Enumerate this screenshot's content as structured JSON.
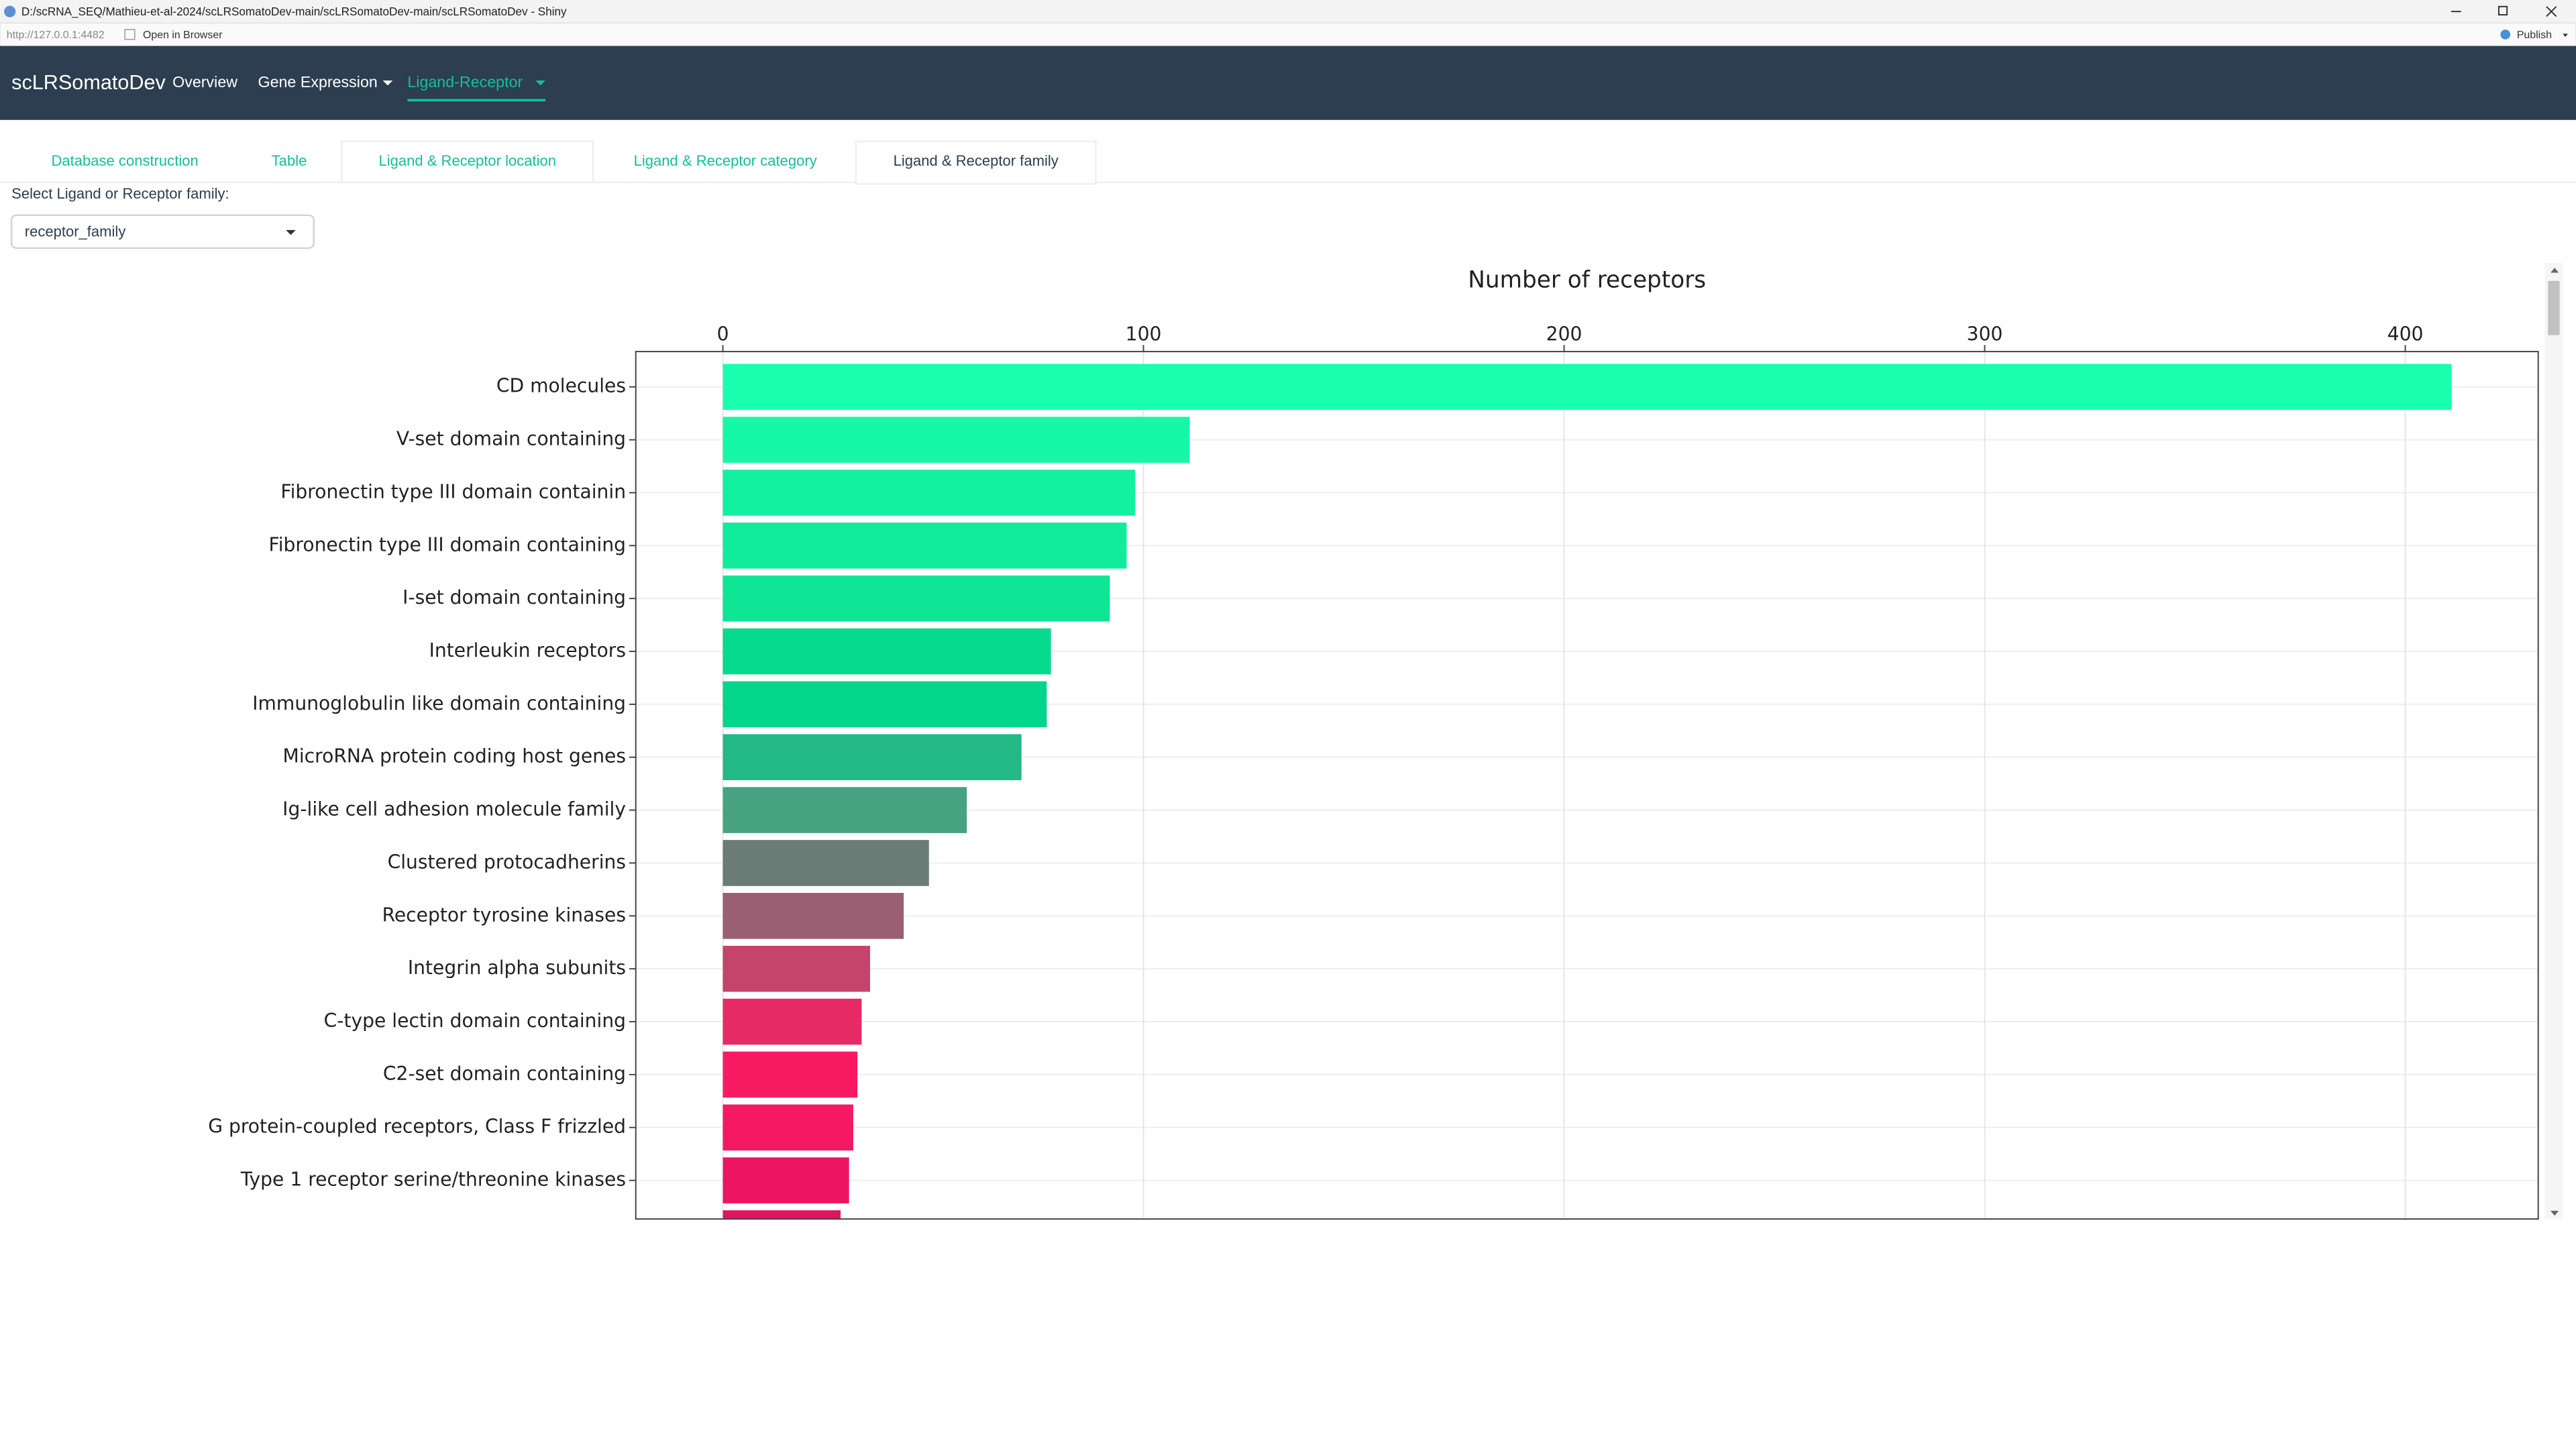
{
  "window": {
    "title": "D:/scRNA_SEQ/Mathieu-et-al-2024/scLRSomatoDev-main/scLRSomatoDev-main/scLRSomatoDev - Shiny",
    "url": "http://127.0.0.1:4482",
    "open_browser": "Open in Browser",
    "publish": "Publish"
  },
  "navbar": {
    "brand": "scLRSomatoDev",
    "items": [
      "Overview",
      "Gene Expression",
      "Ligand-Receptor"
    ]
  },
  "tabs": [
    "Database construction",
    "Table",
    "Ligand & Receptor location",
    "Ligand & Receptor category",
    "Ligand & Receptor family"
  ],
  "select": {
    "label": "Select Ligand or Receptor family:",
    "value": "receptor_family"
  },
  "chart_data": {
    "type": "bar",
    "orientation": "horizontal",
    "title": "Number of receptors",
    "categories": [
      "CD molecules",
      "V-set domain containing",
      "Fibronectin type III domain containin",
      "Fibronectin type III domain containing",
      "I-set domain containing",
      "Interleukin receptors",
      "Immunoglobulin like domain containing",
      "MicroRNA protein coding host genes",
      "Ig-like cell adhesion molecule family",
      "Clustered protocadherins",
      "Receptor tyrosine kinases",
      "Integrin alpha subunits",
      "C-type lectin domain containing",
      "C2-set domain containing",
      "G protein-coupled receptors, Class F frizzled",
      "Type 1 receptor serine/threonine kinases",
      null
    ],
    "values": [
      411,
      111,
      98,
      96,
      92,
      78,
      77,
      71,
      58,
      49,
      43,
      35,
      33,
      32,
      31,
      30,
      28
    ],
    "colors": [
      "#19ffb0",
      "#16f8a8",
      "#12f0a0",
      "#11ec9c",
      "#0ee696",
      "#05da8e",
      "#03d68a",
      "#22b986",
      "#47a282",
      "#6b7b76",
      "#9a5f72",
      "#c6436c",
      "#e52a66",
      "#f81a62",
      "#f51862",
      "#ec1562",
      "#e01460"
    ],
    "xlim": [
      -20.7,
      431.6
    ],
    "xticks": [
      0,
      100,
      200,
      300,
      400
    ],
    "grid": true
  }
}
